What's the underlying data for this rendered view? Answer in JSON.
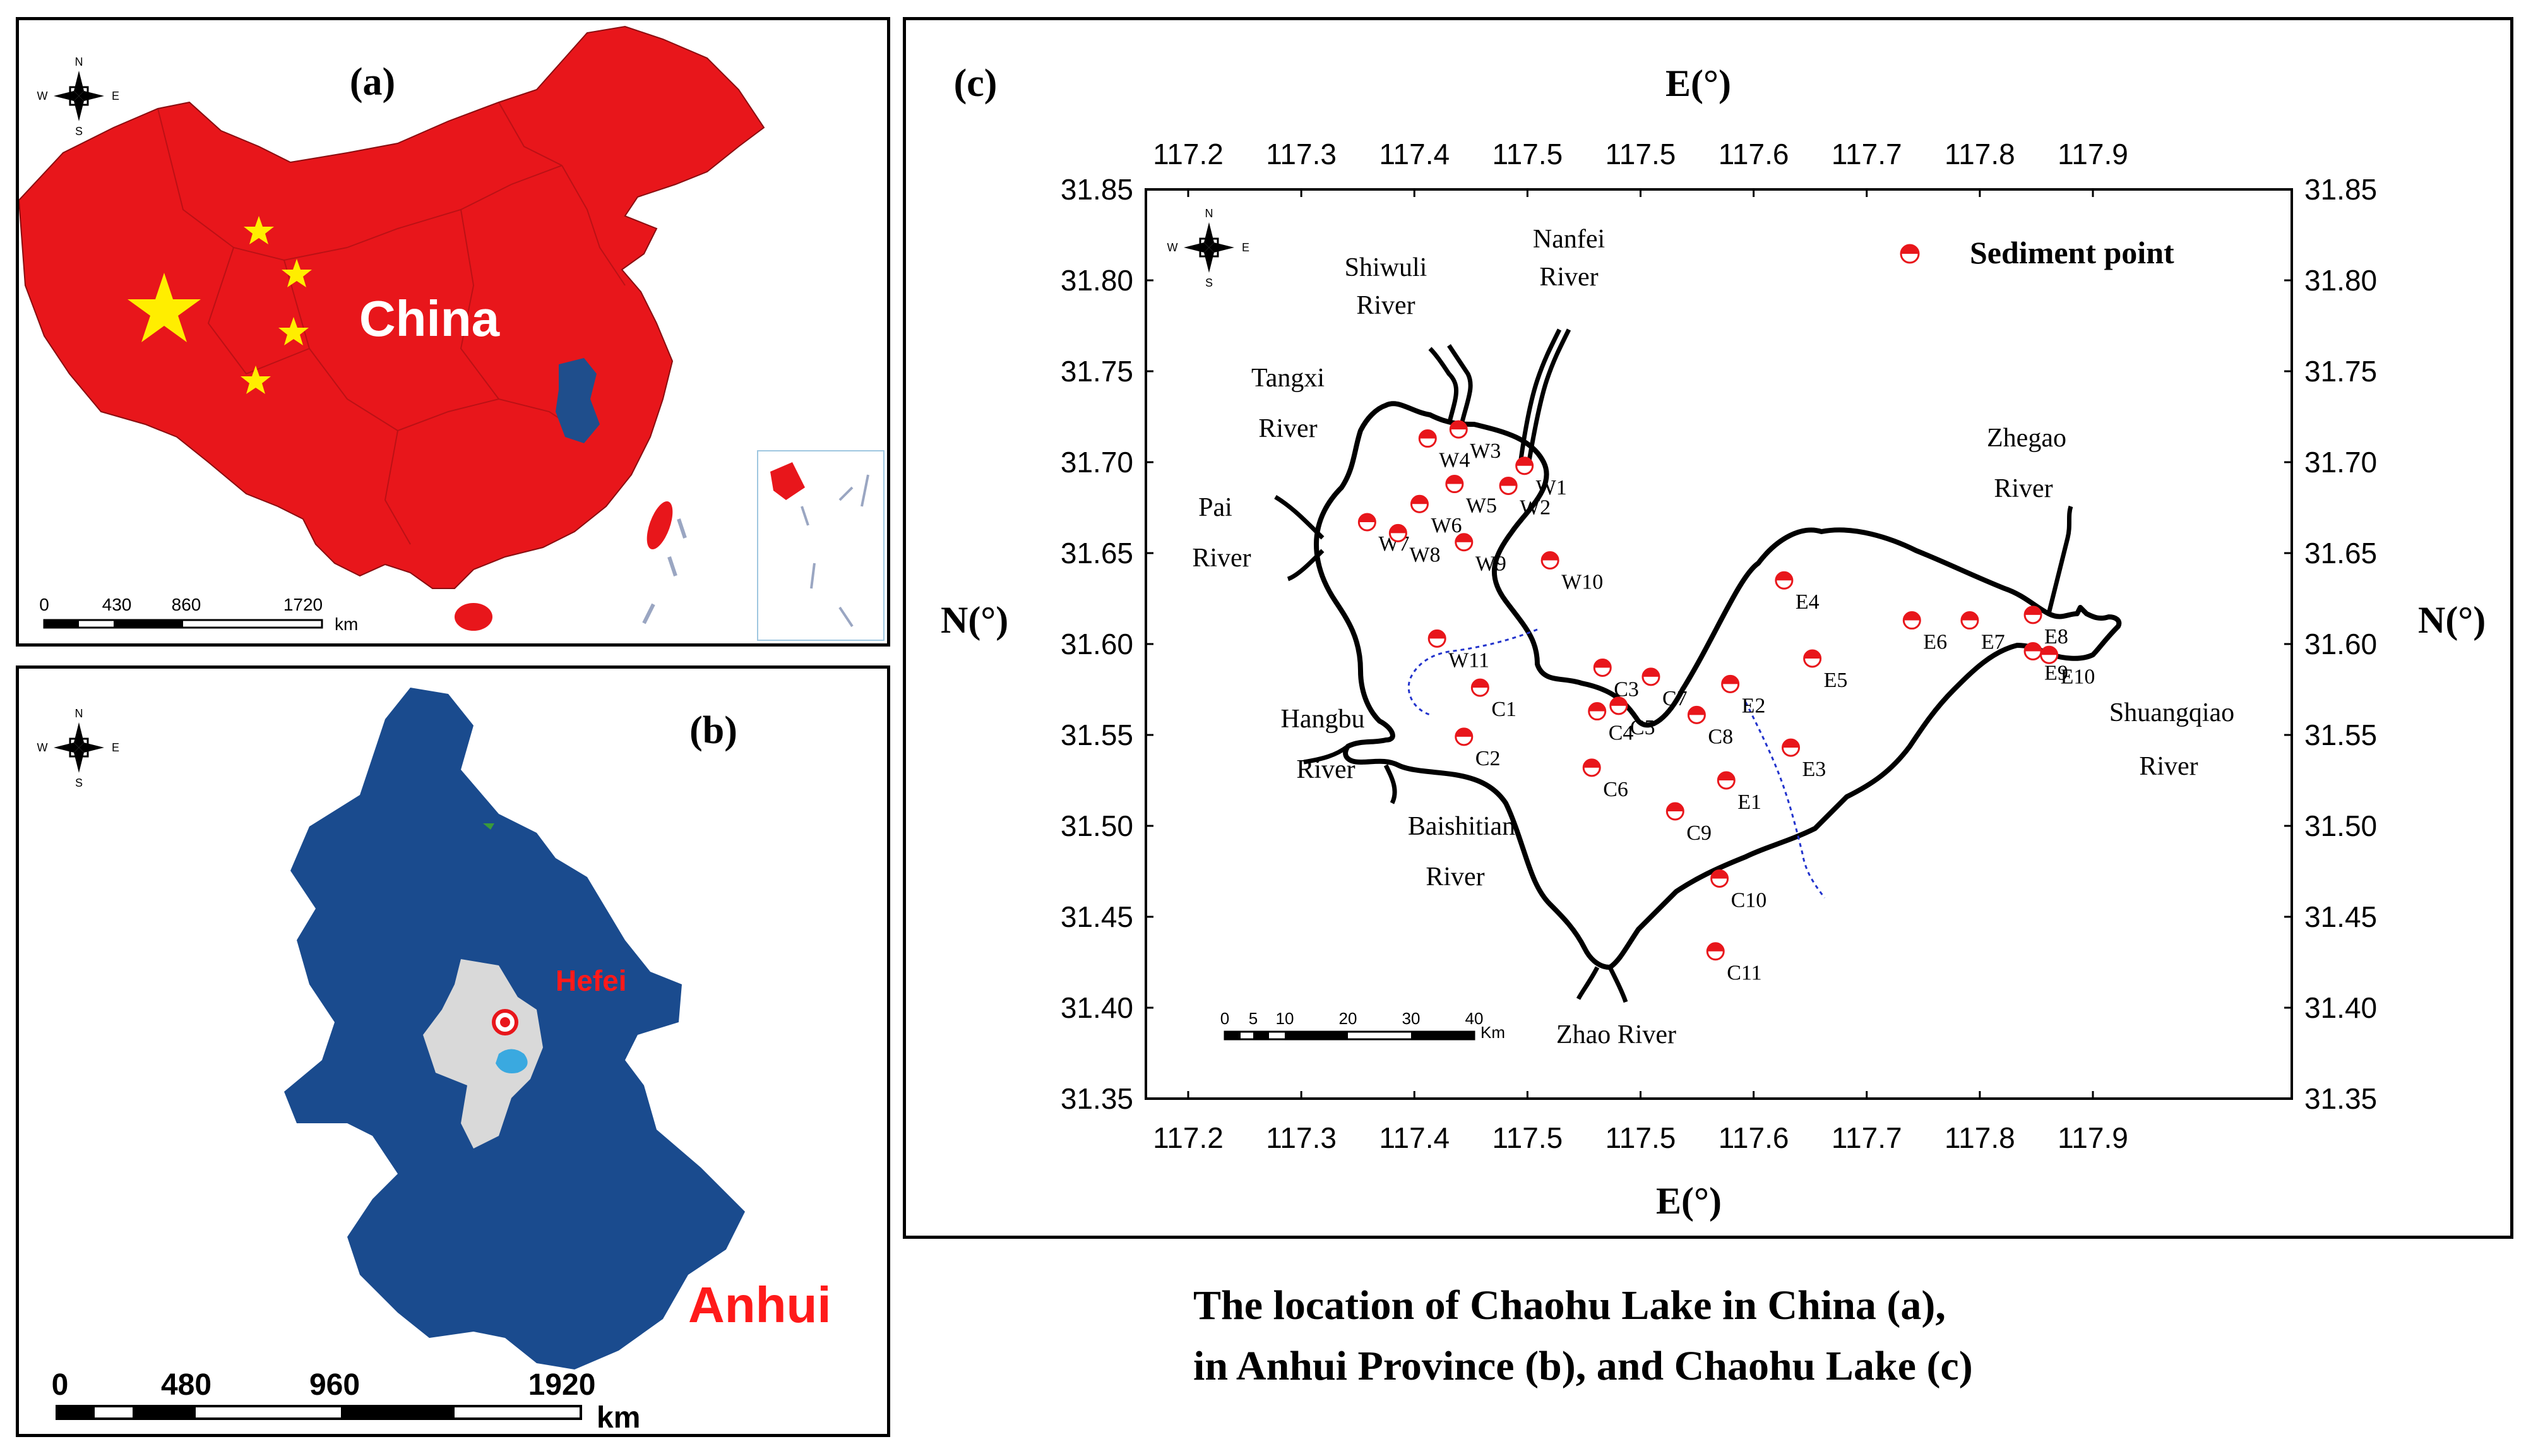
{
  "panel_a": {
    "label": "(a)",
    "country_label": "China",
    "compass": {
      "n": "N",
      "s": "S",
      "e": "E",
      "w": "W"
    },
    "scale": {
      "ticks": [
        "0",
        "430",
        "860",
        "1720"
      ],
      "unit": "km"
    },
    "colors": {
      "land": "#e8161b",
      "province": "#1f4e8c",
      "stars": "#ffee00",
      "label": "#ffffff"
    }
  },
  "panel_b": {
    "label": "(b)",
    "province_label": "Anhui",
    "city_label": "Hefei",
    "compass": {
      "n": "N",
      "s": "S",
      "e": "E",
      "w": "W"
    },
    "scale": {
      "ticks": [
        "0",
        "480",
        "960",
        "1920"
      ],
      "unit": "km"
    },
    "colors": {
      "province": "#1a4b8e",
      "city": "#d9d9d9",
      "lake": "#3aa9e0",
      "label": "#ff1a1a"
    }
  },
  "panel_c": {
    "label": "(c)",
    "axis_top_title": "E(°)",
    "axis_bottom_title": "E(°)",
    "axis_left_title": "N(°)",
    "axis_right_title": "N(°)",
    "x_ticks": [
      "117.2",
      "117.3",
      "117.4",
      "117.5",
      "117.5",
      "117.6",
      "117.7",
      "117.8",
      "117.9"
    ],
    "y_ticks": [
      "31.85",
      "31.80",
      "31.75",
      "31.70",
      "31.65",
      "31.60",
      "31.55",
      "31.50",
      "31.45",
      "31.40",
      "31.35"
    ],
    "legend": "Sediment point",
    "compass": {
      "n": "N",
      "s": "S",
      "e": "E",
      "w": "W"
    },
    "scale": {
      "ticks": [
        "0",
        "5",
        "10",
        "20",
        "30",
        "40"
      ],
      "unit": "Km"
    },
    "rivers": {
      "shiwuli_1": "Shiwuli",
      "shiwuli_2": "River",
      "nanfei_1": "Nanfei",
      "nanfei_2": "River",
      "tangxi_1": "Tangxi",
      "tangxi_2": "River",
      "pai_1": "Pai",
      "pai_2": "River",
      "hangbu_1": "Hangbu",
      "hangbu_2": "River",
      "baishitian_1": "Baishitian",
      "baishitian_2": "River",
      "zhao": "Zhao River",
      "zhegao_1": "Zhegao",
      "zhegao_2": "River",
      "shuangqiao_1": "Shuangqiao",
      "shuangqiao_2": "River"
    },
    "points": [
      {
        "id": "W1",
        "lon": 117.45,
        "lat": 31.698
      },
      {
        "id": "W2",
        "lon": 117.438,
        "lat": 31.687
      },
      {
        "id": "W3",
        "lon": 117.401,
        "lat": 31.718
      },
      {
        "id": "W4",
        "lon": 117.378,
        "lat": 31.713
      },
      {
        "id": "W5",
        "lon": 117.398,
        "lat": 31.688
      },
      {
        "id": "W6",
        "lon": 117.372,
        "lat": 31.677
      },
      {
        "id": "W7",
        "lon": 117.333,
        "lat": 31.667
      },
      {
        "id": "W8",
        "lon": 117.356,
        "lat": 31.661
      },
      {
        "id": "W9",
        "lon": 117.405,
        "lat": 31.656
      },
      {
        "id": "W10",
        "lon": 117.469,
        "lat": 31.646
      },
      {
        "id": "W11",
        "lon": 117.385,
        "lat": 31.603
      },
      {
        "id": "C1",
        "lon": 117.417,
        "lat": 31.576
      },
      {
        "id": "C2",
        "lon": 117.405,
        "lat": 31.549
      },
      {
        "id": "C3",
        "lon": 117.508,
        "lat": 31.587
      },
      {
        "id": "C4",
        "lon": 117.504,
        "lat": 31.563
      },
      {
        "id": "C5",
        "lon": 117.52,
        "lat": 31.566
      },
      {
        "id": "C6",
        "lon": 117.5,
        "lat": 31.532
      },
      {
        "id": "C7",
        "lon": 117.544,
        "lat": 31.582
      },
      {
        "id": "C8",
        "lon": 117.578,
        "lat": 31.561
      },
      {
        "id": "C9",
        "lon": 117.562,
        "lat": 31.508
      },
      {
        "id": "C10",
        "lon": 117.595,
        "lat": 31.471
      },
      {
        "id": "C11",
        "lon": 117.592,
        "lat": 31.431
      },
      {
        "id": "E1",
        "lon": 117.6,
        "lat": 31.525
      },
      {
        "id": "E2",
        "lon": 117.603,
        "lat": 31.578
      },
      {
        "id": "E3",
        "lon": 117.648,
        "lat": 31.543
      },
      {
        "id": "E4",
        "lon": 117.643,
        "lat": 31.635
      },
      {
        "id": "E5",
        "lon": 117.664,
        "lat": 31.592
      },
      {
        "id": "E6",
        "lon": 117.738,
        "lat": 31.613
      },
      {
        "id": "E7",
        "lon": 117.781,
        "lat": 31.613
      },
      {
        "id": "E8",
        "lon": 117.828,
        "lat": 31.616
      },
      {
        "id": "E9",
        "lon": 117.828,
        "lat": 31.596
      },
      {
        "id": "E10",
        "lon": 117.84,
        "lat": 31.594
      }
    ],
    "colors": {
      "marker": "#e8161b",
      "shoreline": "#000000",
      "divider": "#2233cc"
    }
  },
  "caption": {
    "line1": "The location of Chaohu Lake in China (a),",
    "line2": "in Anhui Province (b), and Chaohu Lake (c)"
  }
}
